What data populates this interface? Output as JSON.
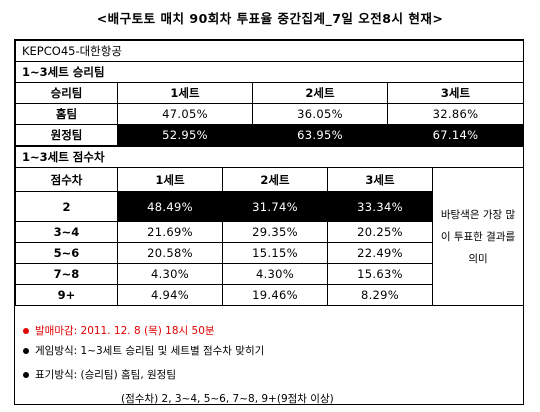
{
  "title": "<배구토토 매치 90회차 투표율 중간집계_7일 오전8시 현재>",
  "match_name": "KEPCO45-대한항공",
  "winner_section": {
    "heading": "1~3세트 승리팀",
    "col_header": "승리팀",
    "sets": [
      "1세트",
      "2세트",
      "3세트"
    ],
    "rows": [
      {
        "label": "홈팀",
        "values": [
          "47.05%",
          "36.05%",
          "32.86%"
        ],
        "highlight": false
      },
      {
        "label": "원정팀",
        "values": [
          "52.95%",
          "63.95%",
          "67.14%"
        ],
        "highlight": true
      }
    ]
  },
  "score_section": {
    "heading": "1~3세트 점수차",
    "col_header": "점수차",
    "sets": [
      "1세트",
      "2세트",
      "3세트"
    ],
    "rows": [
      {
        "label": "2",
        "values": [
          "48.49%",
          "31.74%",
          "33.34%"
        ],
        "highlight": true
      },
      {
        "label": "3~4",
        "values": [
          "21.69%",
          "29.35%",
          "20.25%"
        ],
        "highlight": false
      },
      {
        "label": "5~6",
        "values": [
          "20.58%",
          "15.15%",
          "22.49%"
        ],
        "highlight": false
      },
      {
        "label": "7~8",
        "values": [
          "4.30%",
          "4.30%",
          "15.63%"
        ],
        "highlight": false
      },
      {
        "label": "9+",
        "values": [
          "4.94%",
          "19.46%",
          "8.29%"
        ],
        "highlight": false
      }
    ],
    "side_note": "바탕색은 가장 많이 투표한 결과를 의미"
  },
  "notes": {
    "deadline": "발매마감: 2011. 12. 8 (목) 18시 50분",
    "game_method": "게임방식: 1~3세트 승리팀 및 세트별 점수차 맞히기",
    "notation": "표기방식: (승리팀) 홈팀, 원정팀",
    "notation_score": "(점수차) 2, 3~4, 5~6, 7~8, 9+(9점차 이상)"
  },
  "colors": {
    "highlight_bg": "#000000",
    "deadline": "#e00000"
  }
}
